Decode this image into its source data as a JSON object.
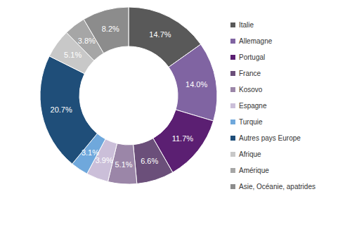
{
  "chart_data": {
    "type": "pie",
    "categories": [
      "Italie",
      "Allemagne",
      "Portugal",
      "France",
      "Kosovo",
      "Espagne",
      "Turquie",
      "Autres pays Europe",
      "Afrique",
      "Amérique",
      "Asie, Océanie, apatrides"
    ],
    "values": [
      14.7,
      14.0,
      11.7,
      6.6,
      5.1,
      3.9,
      3.1,
      20.7,
      5.1,
      3.8,
      8.2
    ],
    "value_labels": [
      "14.7%",
      "14.0%",
      "11.7%",
      "6.6%",
      "5.1%",
      "3.9%",
      "3.1%",
      "20.7%",
      "5.1%",
      "3.8%",
      "8.2%"
    ],
    "colors": [
      "#595959",
      "#8064a2",
      "#5b1f72",
      "#6b4f7a",
      "#9b86a8",
      "#cbbfd9",
      "#6fa8dc",
      "#1f4e79",
      "#c8c8c8",
      "#a6a6a6",
      "#8c8c8c"
    ],
    "data_labels": true,
    "legend": "right"
  }
}
